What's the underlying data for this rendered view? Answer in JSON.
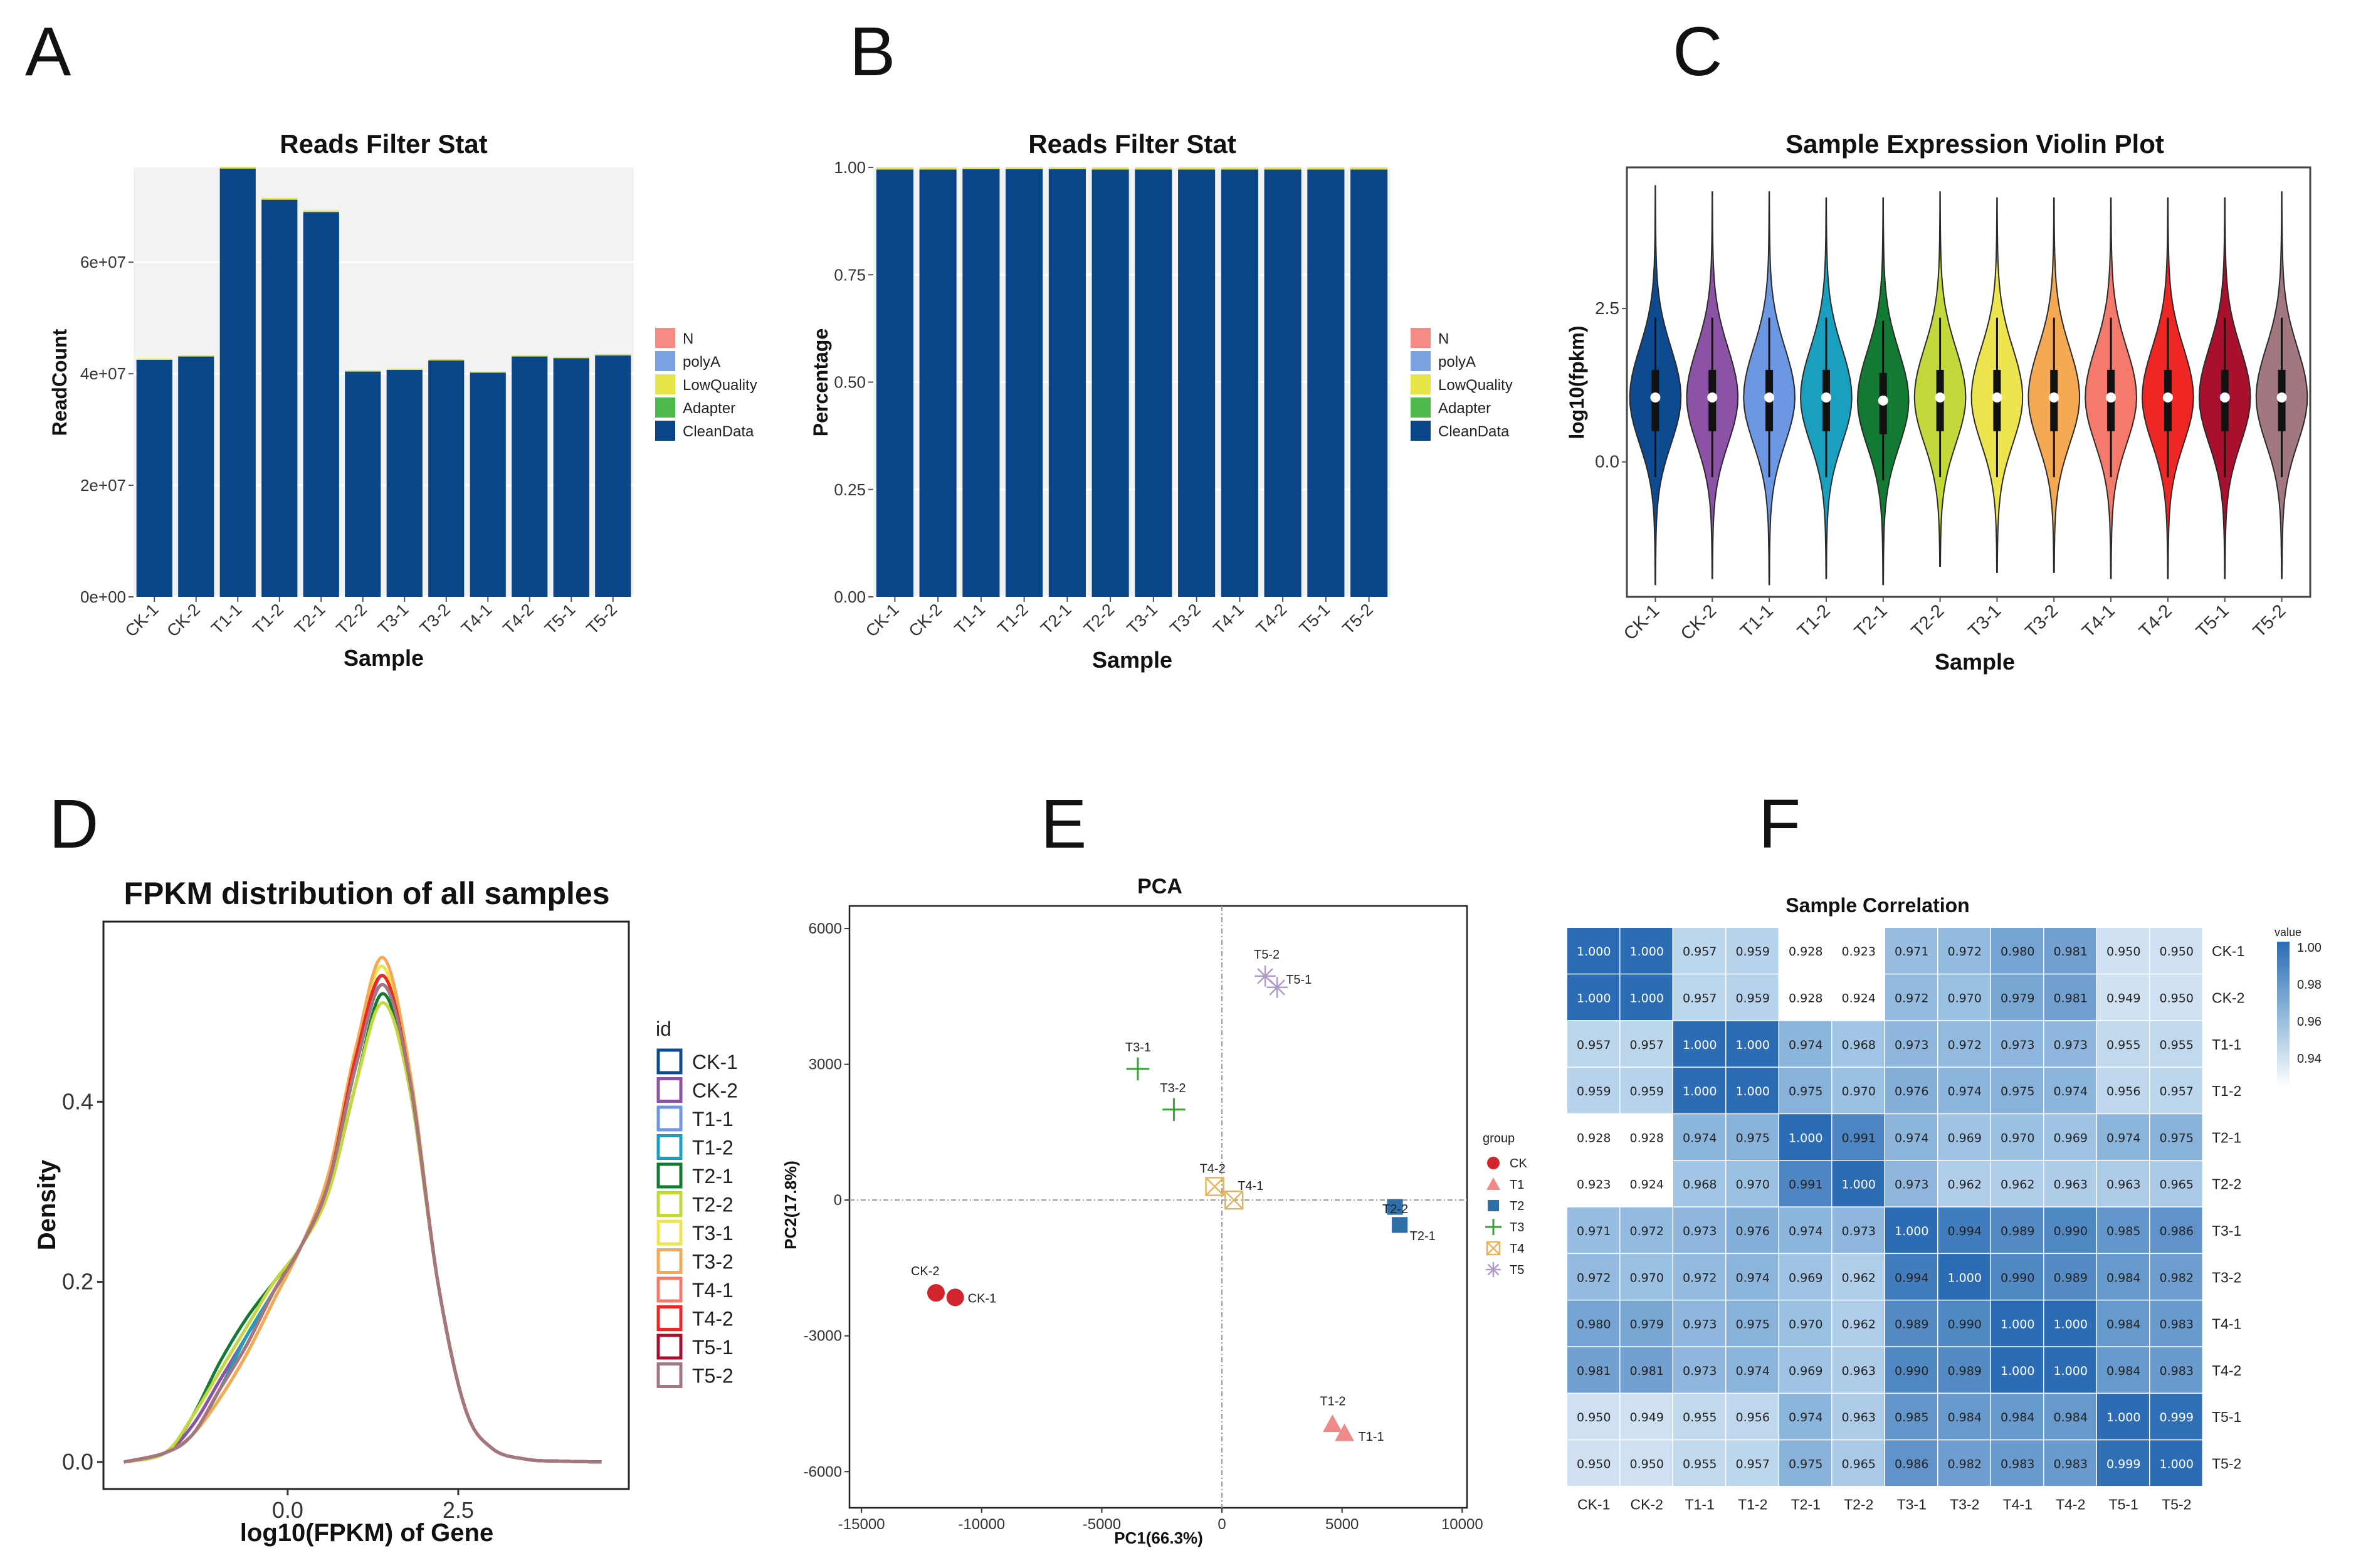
{
  "panel_labels": [
    "A",
    "B",
    "C",
    "D",
    "E",
    "F"
  ],
  "colors": {
    "navy": "#0a4687",
    "filter": {
      "N": "#f88a85",
      "polyA": "#7ba2e0",
      "LowQuality": "#e5e54a",
      "Adapter": "#4fb84b",
      "CleanData": "#0a4687"
    },
    "violin": [
      "#0d4a8f",
      "#8b52a6",
      "#6b97e3",
      "#1a9fbf",
      "#137a33",
      "#c4d83b",
      "#ede54e",
      "#f6a953",
      "#f57a6c",
      "#ee2724",
      "#a8102e",
      "#a2777f"
    ],
    "pca": {
      "CK": "#d2252b",
      "T1": "#f08a8a",
      "T2": "#2f6fa8",
      "T3": "#39a035",
      "T4": "#e3b65e",
      "T5": "#b09ac9"
    }
  },
  "chart_data": [
    {
      "panel": "A",
      "type": "bar",
      "title": "Reads Filter Stat",
      "xlabel": "Sample",
      "ylabel": "ReadCount",
      "categories": [
        "CK-1",
        "CK-2",
        "T1-1",
        "T1-2",
        "T2-1",
        "T2-2",
        "T3-1",
        "T3-2",
        "T4-1",
        "T4-2",
        "T5-1",
        "T5-2"
      ],
      "series": [
        {
          "name": "CleanData",
          "values": [
            42500000,
            43100000,
            76800000,
            71200000,
            69000000,
            40400000,
            40700000,
            42400000,
            40200000,
            43100000,
            42800000,
            43300000
          ]
        },
        {
          "name": "Adapter",
          "values": [
            0,
            0,
            0,
            0,
            0,
            0,
            0,
            0,
            0,
            0,
            0,
            0
          ]
        },
        {
          "name": "LowQuality",
          "values": [
            200000,
            200000,
            300000,
            300000,
            300000,
            200000,
            200000,
            200000,
            200000,
            200000,
            200000,
            200000
          ]
        },
        {
          "name": "polyA",
          "values": [
            0,
            0,
            0,
            0,
            0,
            0,
            0,
            0,
            0,
            0,
            0,
            0
          ]
        },
        {
          "name": "N",
          "values": [
            0,
            0,
            0,
            0,
            0,
            0,
            0,
            0,
            0,
            0,
            0,
            0
          ]
        }
      ],
      "legend": [
        "N",
        "polyA",
        "LowQuality",
        "Adapter",
        "CleanData"
      ],
      "yticks": [
        0,
        20000000,
        40000000,
        60000000
      ],
      "ytick_labels": [
        "0e+00",
        "2e+07",
        "4e+07",
        "6e+07"
      ],
      "ylim": [
        0,
        77000000
      ]
    },
    {
      "panel": "B",
      "type": "bar",
      "title": "Reads Filter Stat",
      "xlabel": "Sample",
      "ylabel": "Percentage",
      "categories": [
        "CK-1",
        "CK-2",
        "T1-1",
        "T1-2",
        "T2-1",
        "T2-2",
        "T3-1",
        "T3-2",
        "T4-1",
        "T4-2",
        "T5-1",
        "T5-2"
      ],
      "series": [
        {
          "name": "CleanData",
          "values": [
            0.995,
            0.995,
            0.996,
            0.996,
            0.996,
            0.995,
            0.995,
            0.995,
            0.995,
            0.995,
            0.995,
            0.995
          ]
        },
        {
          "name": "LowQuality",
          "values": [
            0.005,
            0.005,
            0.004,
            0.004,
            0.004,
            0.005,
            0.005,
            0.005,
            0.005,
            0.005,
            0.005,
            0.005
          ]
        }
      ],
      "legend": [
        "N",
        "polyA",
        "LowQuality",
        "Adapter",
        "CleanData"
      ],
      "yticks": [
        0,
        0.25,
        0.5,
        0.75,
        1
      ],
      "ytick_labels": [
        "0.00",
        "0.25",
        "0.50",
        "0.75",
        "1.00"
      ],
      "ylim": [
        0,
        1
      ]
    },
    {
      "panel": "C",
      "type": "violin",
      "title": "Sample Expression Violin Plot",
      "xlabel": "Sample",
      "ylabel": "log10(fpkm)",
      "categories": [
        "CK-1",
        "CK-2",
        "T1-1",
        "T1-2",
        "T2-1",
        "T2-2",
        "T3-1",
        "T3-2",
        "T4-1",
        "T4-2",
        "T5-1",
        "T5-2"
      ],
      "median": [
        1.05,
        1.05,
        1.05,
        1.05,
        1.0,
        1.05,
        1.05,
        1.05,
        1.05,
        1.05,
        1.05,
        1.05
      ],
      "q1": [
        0.5,
        0.5,
        0.5,
        0.5,
        0.45,
        0.5,
        0.5,
        0.5,
        0.5,
        0.5,
        0.5,
        0.5
      ],
      "q3": [
        1.5,
        1.5,
        1.5,
        1.5,
        1.45,
        1.5,
        1.5,
        1.5,
        1.5,
        1.5,
        1.5,
        1.5
      ],
      "min": [
        -2.0,
        -1.9,
        -2.0,
        -1.9,
        -2.0,
        -1.7,
        -1.8,
        -1.8,
        -1.9,
        -1.9,
        -1.9,
        -1.9
      ],
      "max": [
        4.5,
        4.4,
        4.4,
        4.3,
        4.3,
        4.4,
        4.3,
        4.3,
        4.3,
        4.3,
        4.3,
        4.4
      ],
      "yticks": [
        0,
        2.5
      ],
      "ytick_labels": [
        "0.0",
        "2.5"
      ],
      "ylim": [
        -2.2,
        4.8
      ]
    },
    {
      "panel": "D",
      "type": "line",
      "title": "FPKM distribution of all samples",
      "xlabel": "log10(FPKM) of Gene",
      "ylabel": "Density",
      "legend_title": "id",
      "x": [
        -2.4,
        -1.8,
        -1.4,
        -1.0,
        -0.6,
        -0.2,
        0.2,
        0.6,
        1.0,
        1.4,
        1.8,
        2.2,
        2.6,
        3.0,
        3.5,
        4.0,
        4.6
      ],
      "series": [
        {
          "name": "CK-1",
          "values": [
            0,
            0.01,
            0.04,
            0.09,
            0.14,
            0.19,
            0.24,
            0.31,
            0.44,
            0.54,
            0.42,
            0.2,
            0.06,
            0.015,
            0.003,
            0.001,
            0
          ]
        },
        {
          "name": "CK-2",
          "values": [
            0,
            0.01,
            0.04,
            0.09,
            0.14,
            0.19,
            0.24,
            0.31,
            0.44,
            0.53,
            0.42,
            0.2,
            0.06,
            0.015,
            0.003,
            0.001,
            0
          ]
        },
        {
          "name": "T1-1",
          "values": [
            0,
            0.01,
            0.03,
            0.08,
            0.14,
            0.19,
            0.24,
            0.31,
            0.44,
            0.54,
            0.42,
            0.2,
            0.06,
            0.015,
            0.003,
            0.001,
            0
          ]
        },
        {
          "name": "T1-2",
          "values": [
            0,
            0.01,
            0.03,
            0.08,
            0.14,
            0.19,
            0.24,
            0.31,
            0.44,
            0.53,
            0.42,
            0.2,
            0.06,
            0.015,
            0.003,
            0.001,
            0
          ]
        },
        {
          "name": "T2-1",
          "values": [
            0,
            0.01,
            0.05,
            0.11,
            0.16,
            0.2,
            0.24,
            0.3,
            0.42,
            0.52,
            0.41,
            0.2,
            0.06,
            0.015,
            0.003,
            0.001,
            0
          ]
        },
        {
          "name": "T2-2",
          "values": [
            0,
            0.01,
            0.05,
            0.1,
            0.15,
            0.2,
            0.24,
            0.3,
            0.42,
            0.51,
            0.41,
            0.2,
            0.06,
            0.015,
            0.003,
            0.001,
            0
          ]
        },
        {
          "name": "T3-1",
          "values": [
            0,
            0.01,
            0.03,
            0.07,
            0.12,
            0.18,
            0.24,
            0.32,
            0.46,
            0.55,
            0.42,
            0.2,
            0.06,
            0.015,
            0.003,
            0.001,
            0
          ]
        },
        {
          "name": "T3-2",
          "values": [
            0,
            0.01,
            0.03,
            0.07,
            0.12,
            0.18,
            0.24,
            0.32,
            0.46,
            0.56,
            0.43,
            0.2,
            0.06,
            0.015,
            0.003,
            0.001,
            0
          ]
        },
        {
          "name": "T4-1",
          "values": [
            0,
            0.01,
            0.03,
            0.08,
            0.13,
            0.19,
            0.24,
            0.31,
            0.45,
            0.54,
            0.42,
            0.2,
            0.06,
            0.015,
            0.003,
            0.001,
            0
          ]
        },
        {
          "name": "T4-2",
          "values": [
            0,
            0.01,
            0.03,
            0.08,
            0.13,
            0.19,
            0.24,
            0.31,
            0.45,
            0.54,
            0.42,
            0.2,
            0.06,
            0.015,
            0.003,
            0.001,
            0
          ]
        },
        {
          "name": "T5-1",
          "values": [
            0,
            0.01,
            0.03,
            0.08,
            0.13,
            0.19,
            0.24,
            0.31,
            0.44,
            0.53,
            0.42,
            0.2,
            0.06,
            0.015,
            0.003,
            0.001,
            0
          ]
        },
        {
          "name": "T5-2",
          "values": [
            0,
            0.01,
            0.03,
            0.08,
            0.13,
            0.19,
            0.24,
            0.31,
            0.44,
            0.53,
            0.42,
            0.2,
            0.06,
            0.015,
            0.003,
            0.001,
            0
          ]
        }
      ],
      "xticks": [
        0,
        2.5
      ],
      "xtick_labels": [
        "0.0",
        "2.5"
      ],
      "yticks": [
        0,
        0.2,
        0.4
      ],
      "ytick_labels": [
        "0.0",
        "0.2",
        "0.4"
      ],
      "xlim": [
        -2.7,
        5.0
      ],
      "ylim": [
        -0.03,
        0.6
      ]
    },
    {
      "panel": "E",
      "type": "scatter",
      "title": "PCA",
      "xlabel": "PC1(66.3%)",
      "ylabel": "PC2(17.8%)",
      "legend_title": "group",
      "groups": [
        "CK",
        "T1",
        "T2",
        "T3",
        "T4",
        "T5"
      ],
      "points": [
        {
          "label": "CK-1",
          "group": "CK",
          "x": -11100,
          "y": -2150
        },
        {
          "label": "CK-2",
          "group": "CK",
          "x": -11900,
          "y": -2050
        },
        {
          "label": "T1-1",
          "group": "T1",
          "x": 5100,
          "y": -5150
        },
        {
          "label": "T1-2",
          "group": "T1",
          "x": 4600,
          "y": -4950
        },
        {
          "label": "T2-1",
          "group": "T2",
          "x": 7400,
          "y": -550
        },
        {
          "label": "T2-2",
          "group": "T2",
          "x": 7200,
          "y": -150
        },
        {
          "label": "T3-1",
          "group": "T3",
          "x": -3500,
          "y": 2900
        },
        {
          "label": "T3-2",
          "group": "T3",
          "x": -2000,
          "y": 2000
        },
        {
          "label": "T4-1",
          "group": "T4",
          "x": 500,
          "y": 0
        },
        {
          "label": "T4-2",
          "group": "T4",
          "x": -300,
          "y": 300
        },
        {
          "label": "T5-1",
          "group": "T5",
          "x": 2300,
          "y": 4700
        },
        {
          "label": "T5-2",
          "group": "T5",
          "x": 1800,
          "y": 4950
        }
      ],
      "xticks": [
        -15000,
        -10000,
        -5000,
        0,
        5000,
        10000
      ],
      "xtick_labels": [
        "-15000",
        "-10000",
        "-5000",
        "0",
        "5000",
        "10000"
      ],
      "yticks": [
        -6000,
        -3000,
        0,
        3000,
        6000
      ],
      "ytick_labels": [
        "-6000",
        "-3000",
        "0",
        "3000",
        "6000"
      ],
      "xlim": [
        -15500,
        10200
      ],
      "ylim": [
        -6800,
        6500
      ]
    },
    {
      "panel": "F",
      "type": "heatmap",
      "title": "Sample Correlation",
      "legend_title": "value",
      "legend_ticks": [
        "1.00",
        "0.98",
        "0.96",
        "0.94"
      ],
      "labels": [
        "CK-1",
        "CK-2",
        "T1-1",
        "T1-2",
        "T2-1",
        "T2-2",
        "T3-1",
        "T3-2",
        "T4-1",
        "T4-2",
        "T5-1",
        "T5-2"
      ],
      "matrix": [
        [
          "1.000",
          "1.000",
          "0.957",
          "0.959",
          "0.928",
          "0.923",
          "0.971",
          "0.972",
          "0.980",
          "0.981",
          "0.950",
          "0.950"
        ],
        [
          "1.000",
          "1.000",
          "0.957",
          "0.959",
          "0.928",
          "0.924",
          "0.972",
          "0.970",
          "0.979",
          "0.981",
          "0.949",
          "0.950"
        ],
        [
          "0.957",
          "0.957",
          "1.000",
          "1.000",
          "0.974",
          "0.968",
          "0.973",
          "0.972",
          "0.973",
          "0.973",
          "0.955",
          "0.955"
        ],
        [
          "0.959",
          "0.959",
          "1.000",
          "1.000",
          "0.975",
          "0.970",
          "0.976",
          "0.974",
          "0.975",
          "0.974",
          "0.956",
          "0.957"
        ],
        [
          "0.928",
          "0.928",
          "0.974",
          "0.975",
          "1.000",
          "0.991",
          "0.974",
          "0.969",
          "0.970",
          "0.969",
          "0.974",
          "0.975"
        ],
        [
          "0.923",
          "0.924",
          "0.968",
          "0.970",
          "0.991",
          "1.000",
          "0.973",
          "0.962",
          "0.962",
          "0.963",
          "0.963",
          "0.965"
        ],
        [
          "0.971",
          "0.972",
          "0.973",
          "0.976",
          "0.974",
          "0.973",
          "1.000",
          "0.994",
          "0.989",
          "0.990",
          "0.985",
          "0.986"
        ],
        [
          "0.972",
          "0.970",
          "0.972",
          "0.974",
          "0.969",
          "0.962",
          "0.994",
          "1.000",
          "0.990",
          "0.989",
          "0.984",
          "0.982"
        ],
        [
          "0.980",
          "0.979",
          "0.973",
          "0.975",
          "0.970",
          "0.962",
          "0.989",
          "0.990",
          "1.000",
          "1.000",
          "0.984",
          "0.983"
        ],
        [
          "0.981",
          "0.981",
          "0.973",
          "0.974",
          "0.969",
          "0.963",
          "0.990",
          "0.989",
          "1.000",
          "1.000",
          "0.984",
          "0.983"
        ],
        [
          "0.950",
          "0.949",
          "0.955",
          "0.956",
          "0.974",
          "0.963",
          "0.985",
          "0.984",
          "0.984",
          "0.984",
          "1.000",
          "0.999"
        ],
        [
          "0.950",
          "0.950",
          "0.955",
          "0.957",
          "0.975",
          "0.965",
          "0.986",
          "0.982",
          "0.983",
          "0.983",
          "0.999",
          "1.000"
        ]
      ]
    }
  ]
}
